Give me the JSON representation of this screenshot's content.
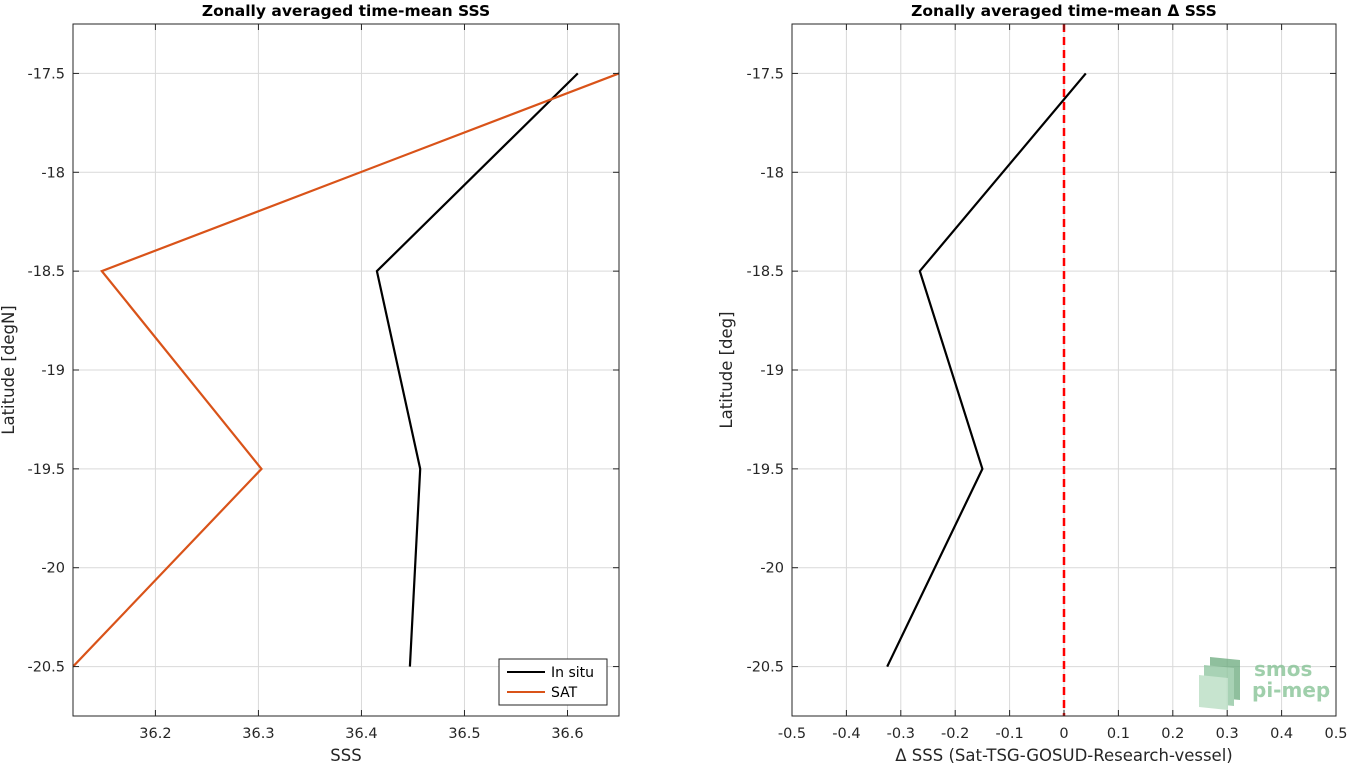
{
  "chart_data": [
    {
      "type": "line",
      "title": "Zonally averaged time-mean SSS",
      "xlabel": "SSS",
      "ylabel": "Latitude [degN]",
      "xlim": [
        36.12,
        36.65
      ],
      "ylim": [
        -20.75,
        -17.25
      ],
      "xticks": [
        "36.2",
        "36.3",
        "36.4",
        "36.5",
        "36.6"
      ],
      "yticks": [
        "-17.5",
        "-18",
        "-18.5",
        "-19",
        "-19.5",
        "-20",
        "-20.5"
      ],
      "grid": true,
      "legend_position": "bottom-right",
      "series": [
        {
          "name": "In situ",
          "color": "#000000",
          "points": [
            [
              36.61,
              -17.5
            ],
            [
              36.415,
              -18.5
            ],
            [
              36.457,
              -19.5
            ],
            [
              36.447,
              -20.5
            ]
          ]
        },
        {
          "name": "SAT",
          "color": "#d95319",
          "points": [
            [
              36.65,
              -17.5
            ],
            [
              36.148,
              -18.5
            ],
            [
              36.303,
              -19.5
            ],
            [
              36.12,
              -20.5
            ]
          ]
        }
      ]
    },
    {
      "type": "line",
      "title": "Zonally averaged time-mean Δ SSS",
      "xlabel": "Δ SSS (Sat-TSG-GOSUD-Research-vessel)",
      "ylabel": "Latitude [deg]",
      "xlim": [
        -0.5,
        0.5
      ],
      "ylim": [
        -20.75,
        -17.25
      ],
      "xticks": [
        "-0.5",
        "-0.4",
        "-0.3",
        "-0.2",
        "-0.1",
        "0",
        "0.1",
        "0.2",
        "0.3",
        "0.4",
        "0.5"
      ],
      "yticks": [
        "-17.5",
        "-18",
        "-18.5",
        "-19",
        "-19.5",
        "-20",
        "-20.5"
      ],
      "grid": true,
      "reference_line": {
        "x": 0,
        "color": "#ff0000",
        "style": "dashed"
      },
      "series": [
        {
          "color": "#000000",
          "points": [
            [
              0.04,
              -17.5
            ],
            [
              -0.265,
              -18.5
            ],
            [
              -0.15,
              -19.5
            ],
            [
              -0.325,
              -20.5
            ]
          ]
        }
      ]
    }
  ],
  "watermark": {
    "line1": "smos",
    "line2": "pi-mep",
    "color": "#7fbf8f"
  }
}
